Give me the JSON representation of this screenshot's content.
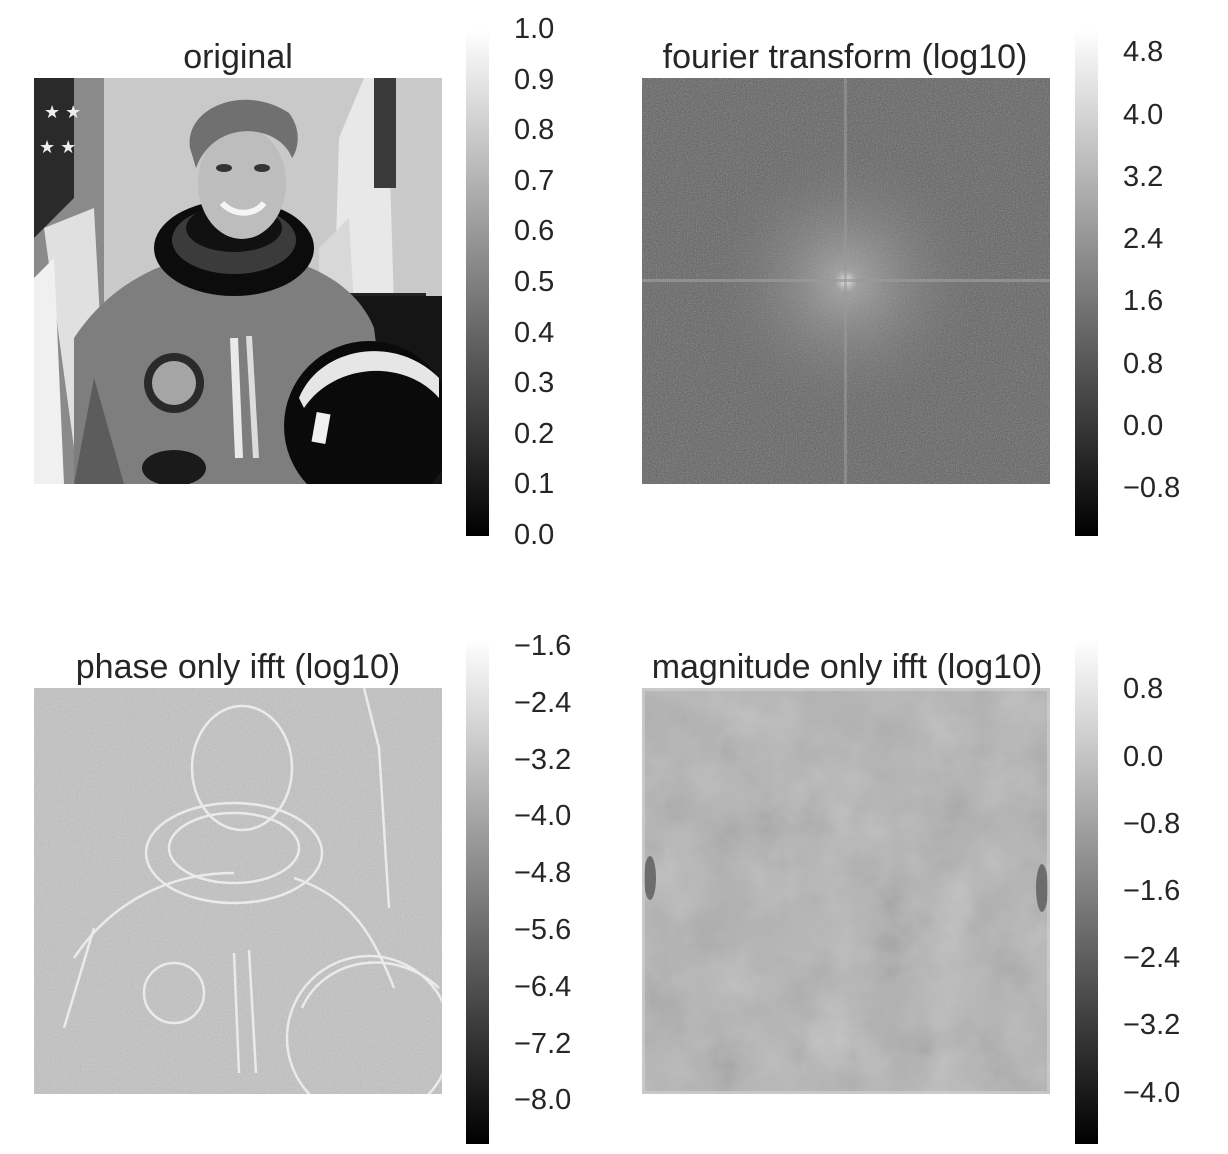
{
  "colormap": {
    "name": "gray",
    "low": "#000000",
    "high": "#ffffff"
  },
  "chart_data": [
    {
      "type": "heatmap",
      "title": "original",
      "image": "astronaut-grayscale-photo",
      "colorbar": {
        "min": 0.0,
        "max": 1.0,
        "ticks": [
          "0.0",
          "0.1",
          "0.2",
          "0.3",
          "0.4",
          "0.5",
          "0.6",
          "0.7",
          "0.8",
          "0.9",
          "1.0"
        ]
      },
      "grid": false
    },
    {
      "type": "heatmap",
      "title": "fourier transform (log10)",
      "image": "fft-log-magnitude-noise",
      "colorbar": {
        "min": -1.4,
        "max": 5.1,
        "ticks": [
          "−0.8",
          "0.0",
          "0.8",
          "1.6",
          "2.4",
          "3.2",
          "4.0",
          "4.8"
        ]
      },
      "grid": false
    },
    {
      "type": "heatmap",
      "title": "phase only ifft (log10)",
      "image": "phase-only-reconstruction-edges",
      "colorbar": {
        "min": -8.6,
        "max": -1.5,
        "ticks": [
          "−8.0",
          "−7.2",
          "−6.4",
          "−5.6",
          "−4.8",
          "−4.0",
          "−3.2",
          "−2.4",
          "−1.6"
        ]
      },
      "grid": false
    },
    {
      "type": "heatmap",
      "title": "magnitude only ifft (log10)",
      "image": "magnitude-only-reconstruction-blur",
      "colorbar": {
        "min": -4.6,
        "max": 1.4,
        "ticks": [
          "−4.0",
          "−3.2",
          "−2.4",
          "−1.6",
          "−0.8",
          "0.0",
          "0.8"
        ]
      },
      "grid": false
    }
  ]
}
